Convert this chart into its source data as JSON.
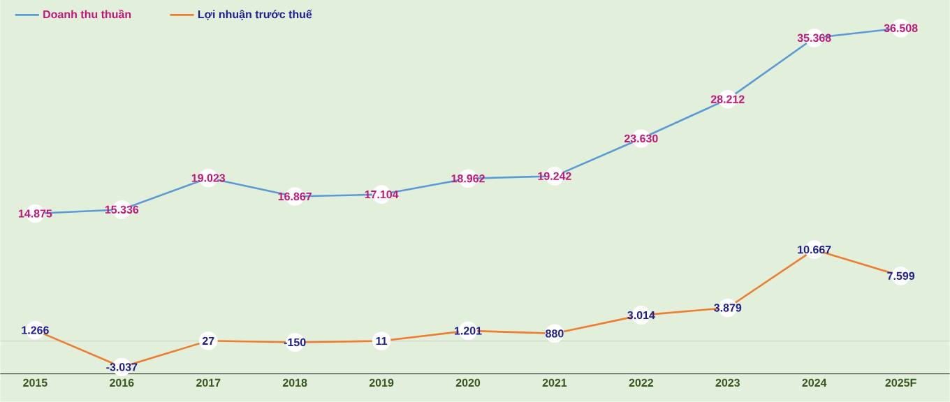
{
  "chart_data": {
    "type": "line",
    "categories": [
      "2015",
      "2016",
      "2017",
      "2018",
      "2019",
      "2020",
      "2021",
      "2022",
      "2023",
      "2024",
      "2025F"
    ],
    "series": [
      {
        "name": "Doanh thu thuần",
        "color": "#5b9bd5",
        "values": [
          14875,
          15336,
          19023,
          16867,
          17104,
          18962,
          19242,
          23630,
          28212,
          35368,
          36508
        ],
        "value_labels": [
          "14.875",
          "15.336",
          "19.023",
          "16.867",
          "17.104",
          "18.962",
          "19.242",
          "23.630",
          "28.212",
          "35.368",
          "36.508"
        ]
      },
      {
        "name": "Lợi nhuận trước thuế",
        "color": "#ed7d31",
        "values": [
          1266,
          -3037,
          27,
          -150,
          11,
          1201,
          880,
          3014,
          3879,
          10667,
          7599
        ],
        "value_labels": [
          "1.266",
          "-3.037",
          "27",
          "-150",
          "11",
          "1.201",
          "880",
          "3.014",
          "3.879",
          "10.667",
          "7.599"
        ]
      }
    ],
    "marker": "circle",
    "legend": "top left",
    "tick_labels": "x"
  }
}
